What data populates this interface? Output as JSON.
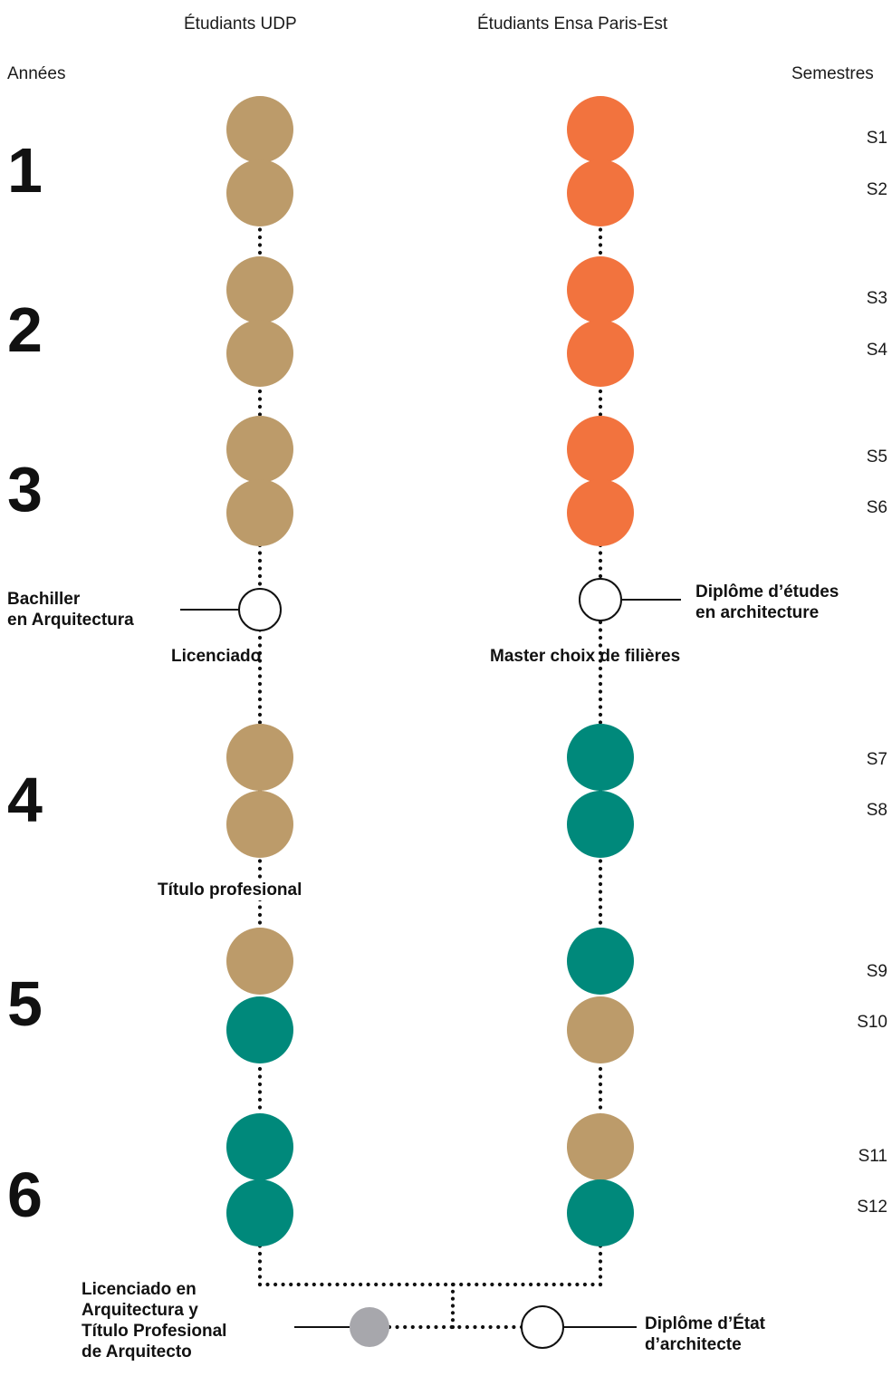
{
  "headers": {
    "left_column": "Étudiants UDP",
    "right_column": "Étudiants Ensa Paris-Est",
    "years_label": "Années",
    "semesters_label": "Semestres"
  },
  "years": [
    "1",
    "2",
    "3",
    "4",
    "5",
    "6"
  ],
  "semesters": [
    "S1",
    "S2",
    "S3",
    "S4",
    "S5",
    "S6",
    "S7",
    "S8",
    "S9",
    "S10",
    "S11",
    "S12"
  ],
  "colors": {
    "tan": "#BC9B6A",
    "orange": "#F2733E",
    "teal": "#00897B",
    "gray": "#A7A7AC",
    "line": "#111111"
  },
  "udp_semesters": [
    "tan",
    "tan",
    "tan",
    "tan",
    "tan",
    "tan",
    "tan",
    "tan",
    "tan",
    "teal",
    "teal",
    "teal"
  ],
  "ensa_semesters": [
    "orange",
    "orange",
    "orange",
    "orange",
    "orange",
    "orange",
    "teal",
    "teal",
    "teal",
    "tan",
    "tan",
    "teal"
  ],
  "labels": {
    "bachiller": [
      "Bachiller",
      "en Arquitectura"
    ],
    "licenciado": "Licenciado",
    "diplome_etudes": [
      "Diplôme d’études",
      "en architecture"
    ],
    "master": "Master choix de filières",
    "titulo": "Título profesional",
    "final_udp": [
      "Licenciado en",
      "Arquitectura y",
      "Título Profesional",
      "de Arquitecto"
    ],
    "final_ensa": [
      "Diplôme d’État",
      "d’architecte"
    ]
  }
}
